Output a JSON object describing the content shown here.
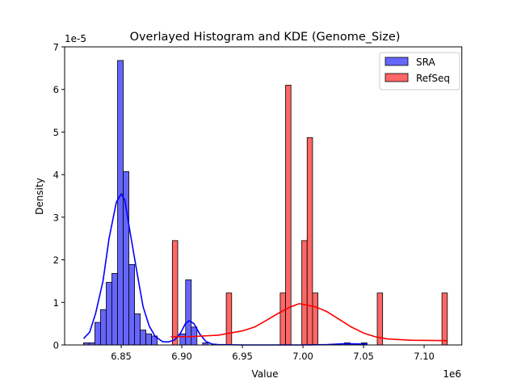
{
  "chart_data": {
    "type": "bar",
    "title": "Overlayed Histogram and KDE (Genome_Size)",
    "xlabel": "Value",
    "ylabel": "Density",
    "x_offset_label": "1e6",
    "y_offset_label": "1e-5",
    "xlim": [
      6.8033,
      7.1311
    ],
    "ylim": [
      0,
      7
    ],
    "x_ticks": [
      6.85,
      6.9,
      6.95,
      7.0,
      7.05,
      7.1
    ],
    "x_tick_labels": [
      "6.85",
      "6.90",
      "6.95",
      "7.00",
      "7.05",
      "7.10"
    ],
    "y_ticks": [
      0,
      1,
      2,
      3,
      4,
      5,
      6,
      7
    ],
    "y_tick_labels": [
      "0",
      "1",
      "2",
      "3",
      "4",
      "5",
      "6",
      "7"
    ],
    "grid": false,
    "legend_placement": "top-right",
    "series": [
      {
        "name": "SRA",
        "color": "#0000ff",
        "fill": "#6666ff",
        "bin_start": 6.8189,
        "bin_width": 0.00468,
        "heights": [
          0.05,
          0.05,
          0.53,
          0.83,
          1.47,
          1.68,
          6.68,
          4.07,
          1.89,
          0.73,
          0.35,
          0.26,
          0.21,
          0,
          0,
          0,
          0,
          0.26,
          1.53,
          0.42,
          0,
          0.05,
          0,
          0,
          0,
          0,
          0,
          0,
          0,
          0,
          0,
          0,
          0,
          0,
          0,
          0,
          0,
          0,
          0,
          0,
          0,
          0,
          0,
          0,
          0,
          0,
          0.05,
          0,
          0,
          0.05
        ],
        "kde": [
          [
            6.819,
            0.15
          ],
          [
            6.824,
            0.3
          ],
          [
            6.829,
            0.75
          ],
          [
            6.835,
            1.5
          ],
          [
            6.84,
            2.5
          ],
          [
            6.846,
            3.35
          ],
          [
            6.85,
            3.55
          ],
          [
            6.853,
            3.4
          ],
          [
            6.857,
            2.7
          ],
          [
            6.863,
            1.7
          ],
          [
            6.868,
            0.9
          ],
          [
            6.873,
            0.45
          ],
          [
            6.878,
            0.2
          ],
          [
            6.884,
            0.08
          ],
          [
            6.889,
            0.07
          ],
          [
            6.894,
            0.12
          ],
          [
            6.899,
            0.28
          ],
          [
            6.903,
            0.5
          ],
          [
            6.906,
            0.57
          ],
          [
            6.91,
            0.5
          ],
          [
            6.915,
            0.25
          ],
          [
            6.92,
            0.08
          ],
          [
            6.925,
            0.02
          ],
          [
            6.93,
            0.01
          ],
          [
            6.95,
            0
          ],
          [
            7.0,
            0
          ],
          [
            7.02,
            0.01
          ],
          [
            7.035,
            0.03
          ],
          [
            7.053,
            0.02
          ]
        ]
      },
      {
        "name": "RefSeq",
        "color": "#ff0000",
        "fill": "#ff6666",
        "bin_start": 6.8922,
        "bin_width": 0.00445,
        "bins": [
          [
            0,
            2.45
          ],
          [
            10,
            1.22
          ],
          [
            20,
            1.22
          ],
          [
            21,
            6.1
          ],
          [
            24,
            2.45
          ],
          [
            25,
            4.87
          ],
          [
            26,
            1.22
          ],
          [
            38,
            1.22
          ],
          [
            50,
            1.22
          ]
        ],
        "kde": [
          [
            6.891,
            0.19
          ],
          [
            6.91,
            0.2
          ],
          [
            6.93,
            0.23
          ],
          [
            6.95,
            0.33
          ],
          [
            6.96,
            0.42
          ],
          [
            6.97,
            0.58
          ],
          [
            6.98,
            0.75
          ],
          [
            6.99,
            0.9
          ],
          [
            6.997,
            0.97
          ],
          [
            7.01,
            0.9
          ],
          [
            7.02,
            0.78
          ],
          [
            7.03,
            0.6
          ],
          [
            7.04,
            0.42
          ],
          [
            7.05,
            0.28
          ],
          [
            7.06,
            0.19
          ],
          [
            7.07,
            0.14
          ],
          [
            7.09,
            0.11
          ],
          [
            7.119,
            0.1
          ]
        ]
      }
    ]
  }
}
